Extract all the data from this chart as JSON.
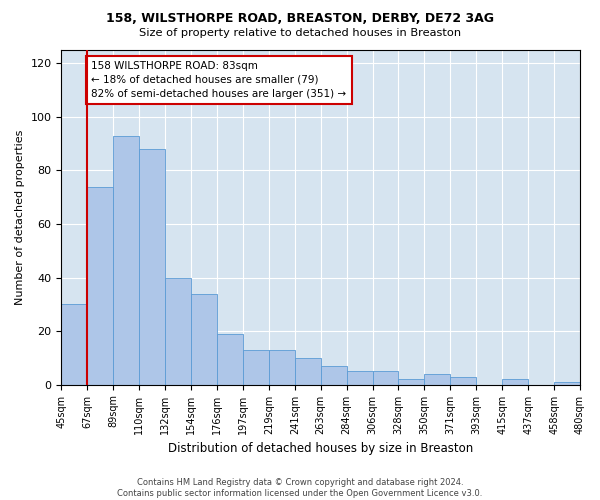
{
  "title1": "158, WILSTHORPE ROAD, BREASTON, DERBY, DE72 3AG",
  "title2": "Size of property relative to detached houses in Breaston",
  "xlabel": "Distribution of detached houses by size in Breaston",
  "ylabel": "Number of detached properties",
  "bar_values": [
    30,
    74,
    93,
    88,
    40,
    34,
    19,
    13,
    13,
    10,
    7,
    5,
    5,
    2,
    4,
    3,
    0,
    2,
    0,
    1
  ],
  "bar_labels": [
    "45sqm",
    "67sqm",
    "89sqm",
    "110sqm",
    "132sqm",
    "154sqm",
    "176sqm",
    "197sqm",
    "219sqm",
    "241sqm",
    "263sqm",
    "284sqm",
    "306sqm",
    "328sqm",
    "350sqm",
    "371sqm",
    "393sqm",
    "415sqm",
    "437sqm",
    "458sqm",
    "480sqm"
  ],
  "bar_color": "#aec6e8",
  "bar_edge_color": "#5b9bd5",
  "vline_x": 1.0,
  "vline_color": "#cc0000",
  "ylim": [
    0,
    125
  ],
  "yticks": [
    0,
    20,
    40,
    60,
    80,
    100,
    120
  ],
  "annotation_text": "158 WILSTHORPE ROAD: 83sqm\n← 18% of detached houses are smaller (79)\n82% of semi-detached houses are larger (351) →",
  "annotation_box_color": "#ffffff",
  "annotation_box_edge": "#cc0000",
  "footer1": "Contains HM Land Registry data © Crown copyright and database right 2024.",
  "footer2": "Contains public sector information licensed under the Open Government Licence v3.0.",
  "grid_color": "#ffffff",
  "bg_color": "#d6e4f0"
}
